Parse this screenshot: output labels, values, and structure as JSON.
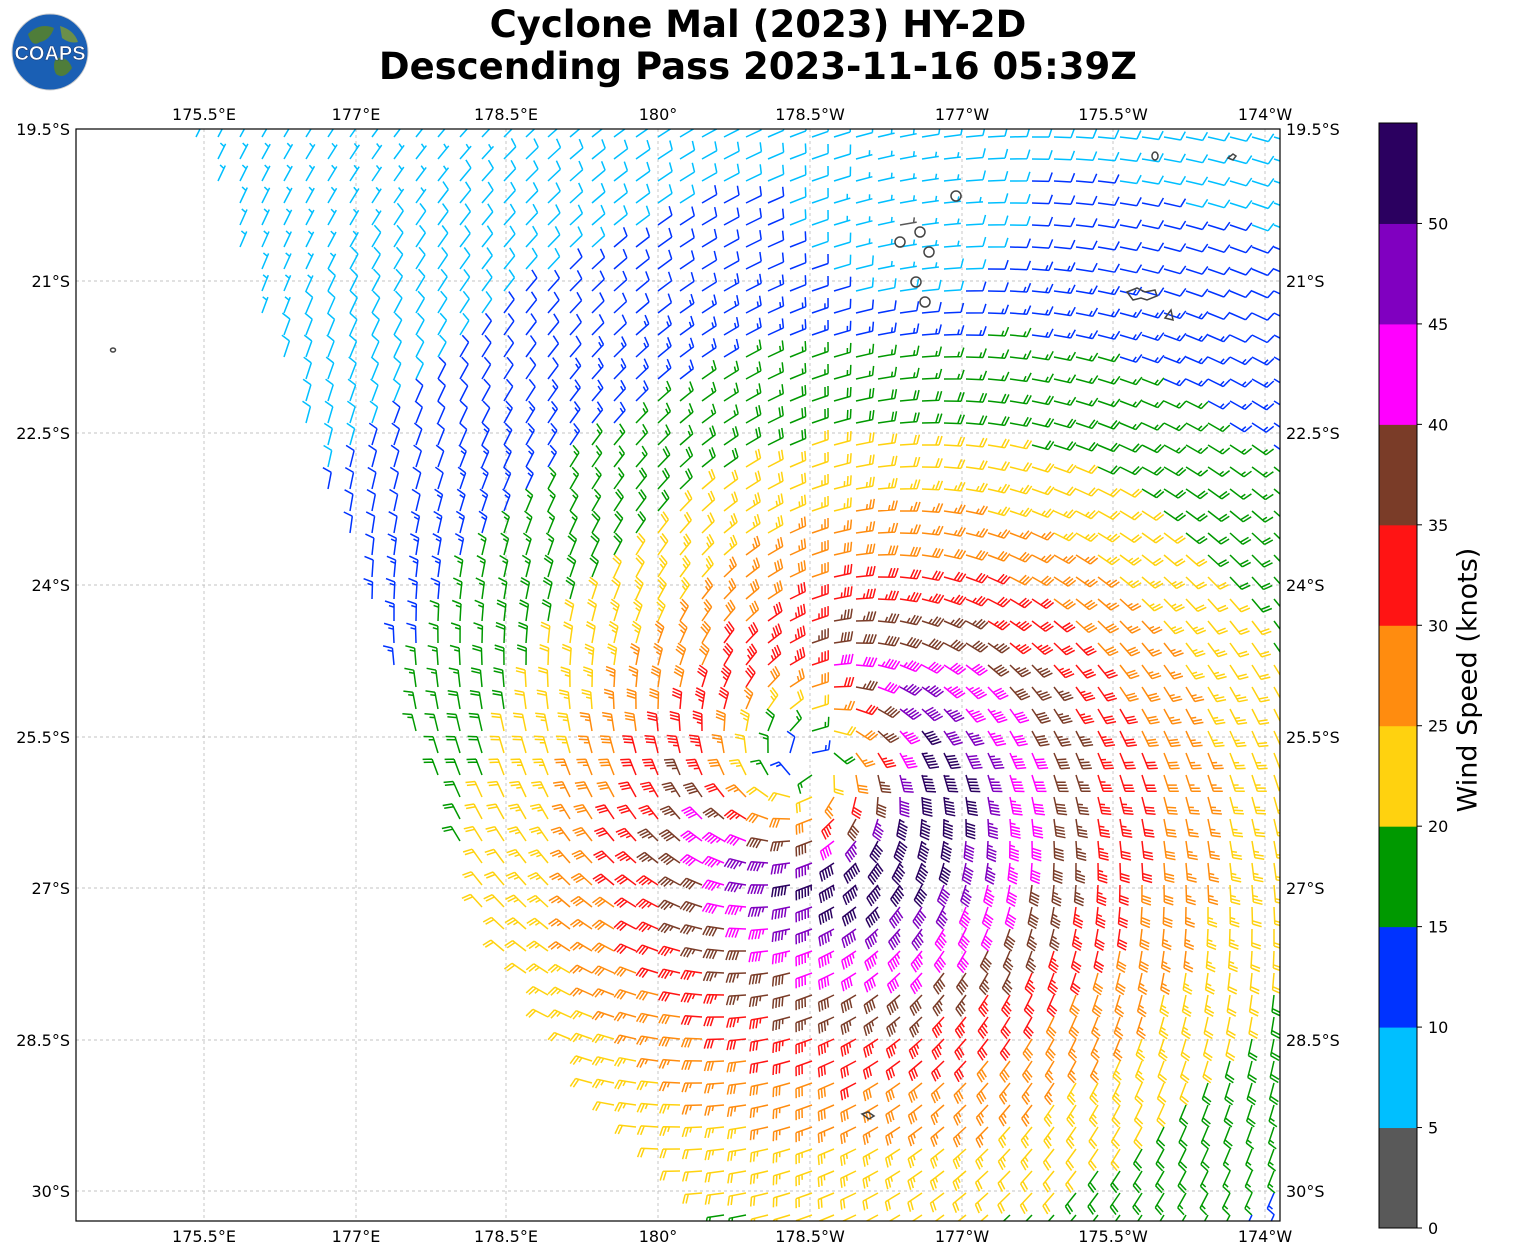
{
  "title": {
    "line1": "Cyclone Mal (2023) HY-2D",
    "line2": "Descending Pass 2023-11-16 05:39Z"
  },
  "logo": {
    "text": "COAPS",
    "ocean_color": "#1a5fb4",
    "land_color": "#4f7d3a"
  },
  "map": {
    "lon_ticks": [
      "175.5°E",
      "177°E",
      "178.5°E",
      "180°",
      "178.5°W",
      "177°W",
      "175.5°W",
      "174°W"
    ],
    "lat_ticks": [
      "19.5°S",
      "21°S",
      "22.5°S",
      "24°S",
      "25.5°S",
      "27°S",
      "28.5°S",
      "30°S"
    ],
    "lon_range": [
      "174.25°E",
      "174°W"
    ],
    "lat_range": [
      "19.5°S",
      "30.3°S"
    ],
    "gridlines": true,
    "storm_center": {
      "lon": -178.5,
      "lat": -25.8
    },
    "swath_west_edge_lon": [
      175.4,
      179.4
    ],
    "barb_unit": "knots"
  },
  "colorbar": {
    "label": "Wind Speed (knots)",
    "ticks": [
      "0",
      "5",
      "10",
      "15",
      "20",
      "25",
      "30",
      "35",
      "40",
      "45",
      "50"
    ],
    "bins": [
      {
        "min": 0,
        "max": 5,
        "color": "#595959"
      },
      {
        "min": 5,
        "max": 10,
        "color": "#00bfff"
      },
      {
        "min": 10,
        "max": 15,
        "color": "#0033ff"
      },
      {
        "min": 15,
        "max": 20,
        "color": "#009900"
      },
      {
        "min": 20,
        "max": 25,
        "color": "#ffd20f"
      },
      {
        "min": 25,
        "max": 30,
        "color": "#ff8c0f"
      },
      {
        "min": 30,
        "max": 35,
        "color": "#ff1414"
      },
      {
        "min": 35,
        "max": 40,
        "color": "#7a3c28"
      },
      {
        "min": 40,
        "max": 45,
        "color": "#ff00ff"
      },
      {
        "min": 45,
        "max": 50,
        "color": "#8000c0"
      },
      {
        "min": 50,
        "max": 55,
        "color": "#2b0060"
      }
    ]
  }
}
